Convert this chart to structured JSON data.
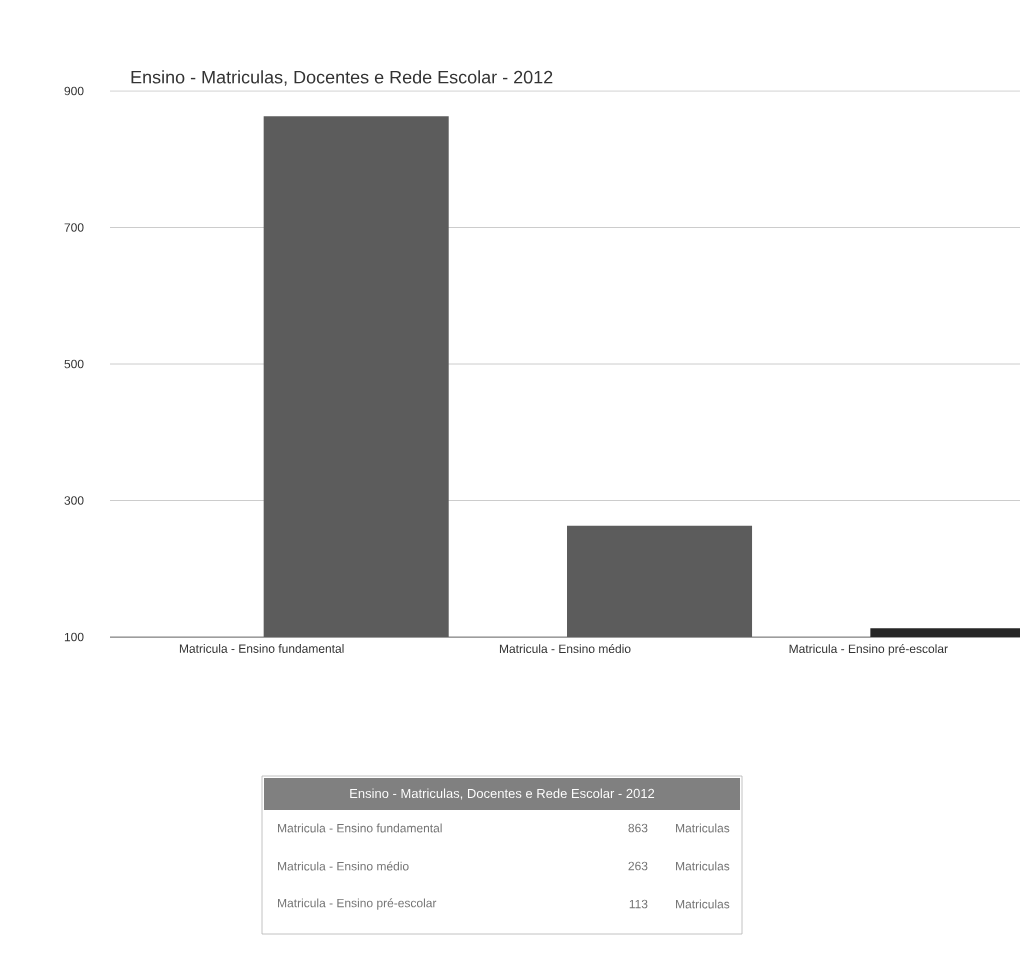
{
  "chart_data": [
    {
      "type": "bar",
      "title": "Ensino - Matriculas, Docentes e Rede Escolar - 2012",
      "categories": [
        "Matricula - Ensino fundamental",
        "Matricula - Ensino médio",
        "Matricula - Ensino pré-escolar"
      ],
      "values": [
        863,
        263,
        113
      ],
      "colors": [
        "#5c5c5c",
        "#5c5c5c",
        "#262626"
      ],
      "ylim": [
        100,
        900
      ],
      "yticks": [
        100,
        300,
        500,
        700,
        900
      ],
      "grid": "y"
    },
    {
      "type": "other",
      "title": "Ensino - Matriculas, Docentes e Rede Escolar - 2012",
      "categories": [
        "Matricula - Ensino fundamental",
        "Matricula - Ensino médio",
        "Matricula - Ensino pré-escolar"
      ],
      "value_labels": [
        "863",
        "263",
        "113"
      ],
      "annotations": [
        "Matriculas",
        "Matriculas",
        "Matriculas"
      ]
    }
  ]
}
